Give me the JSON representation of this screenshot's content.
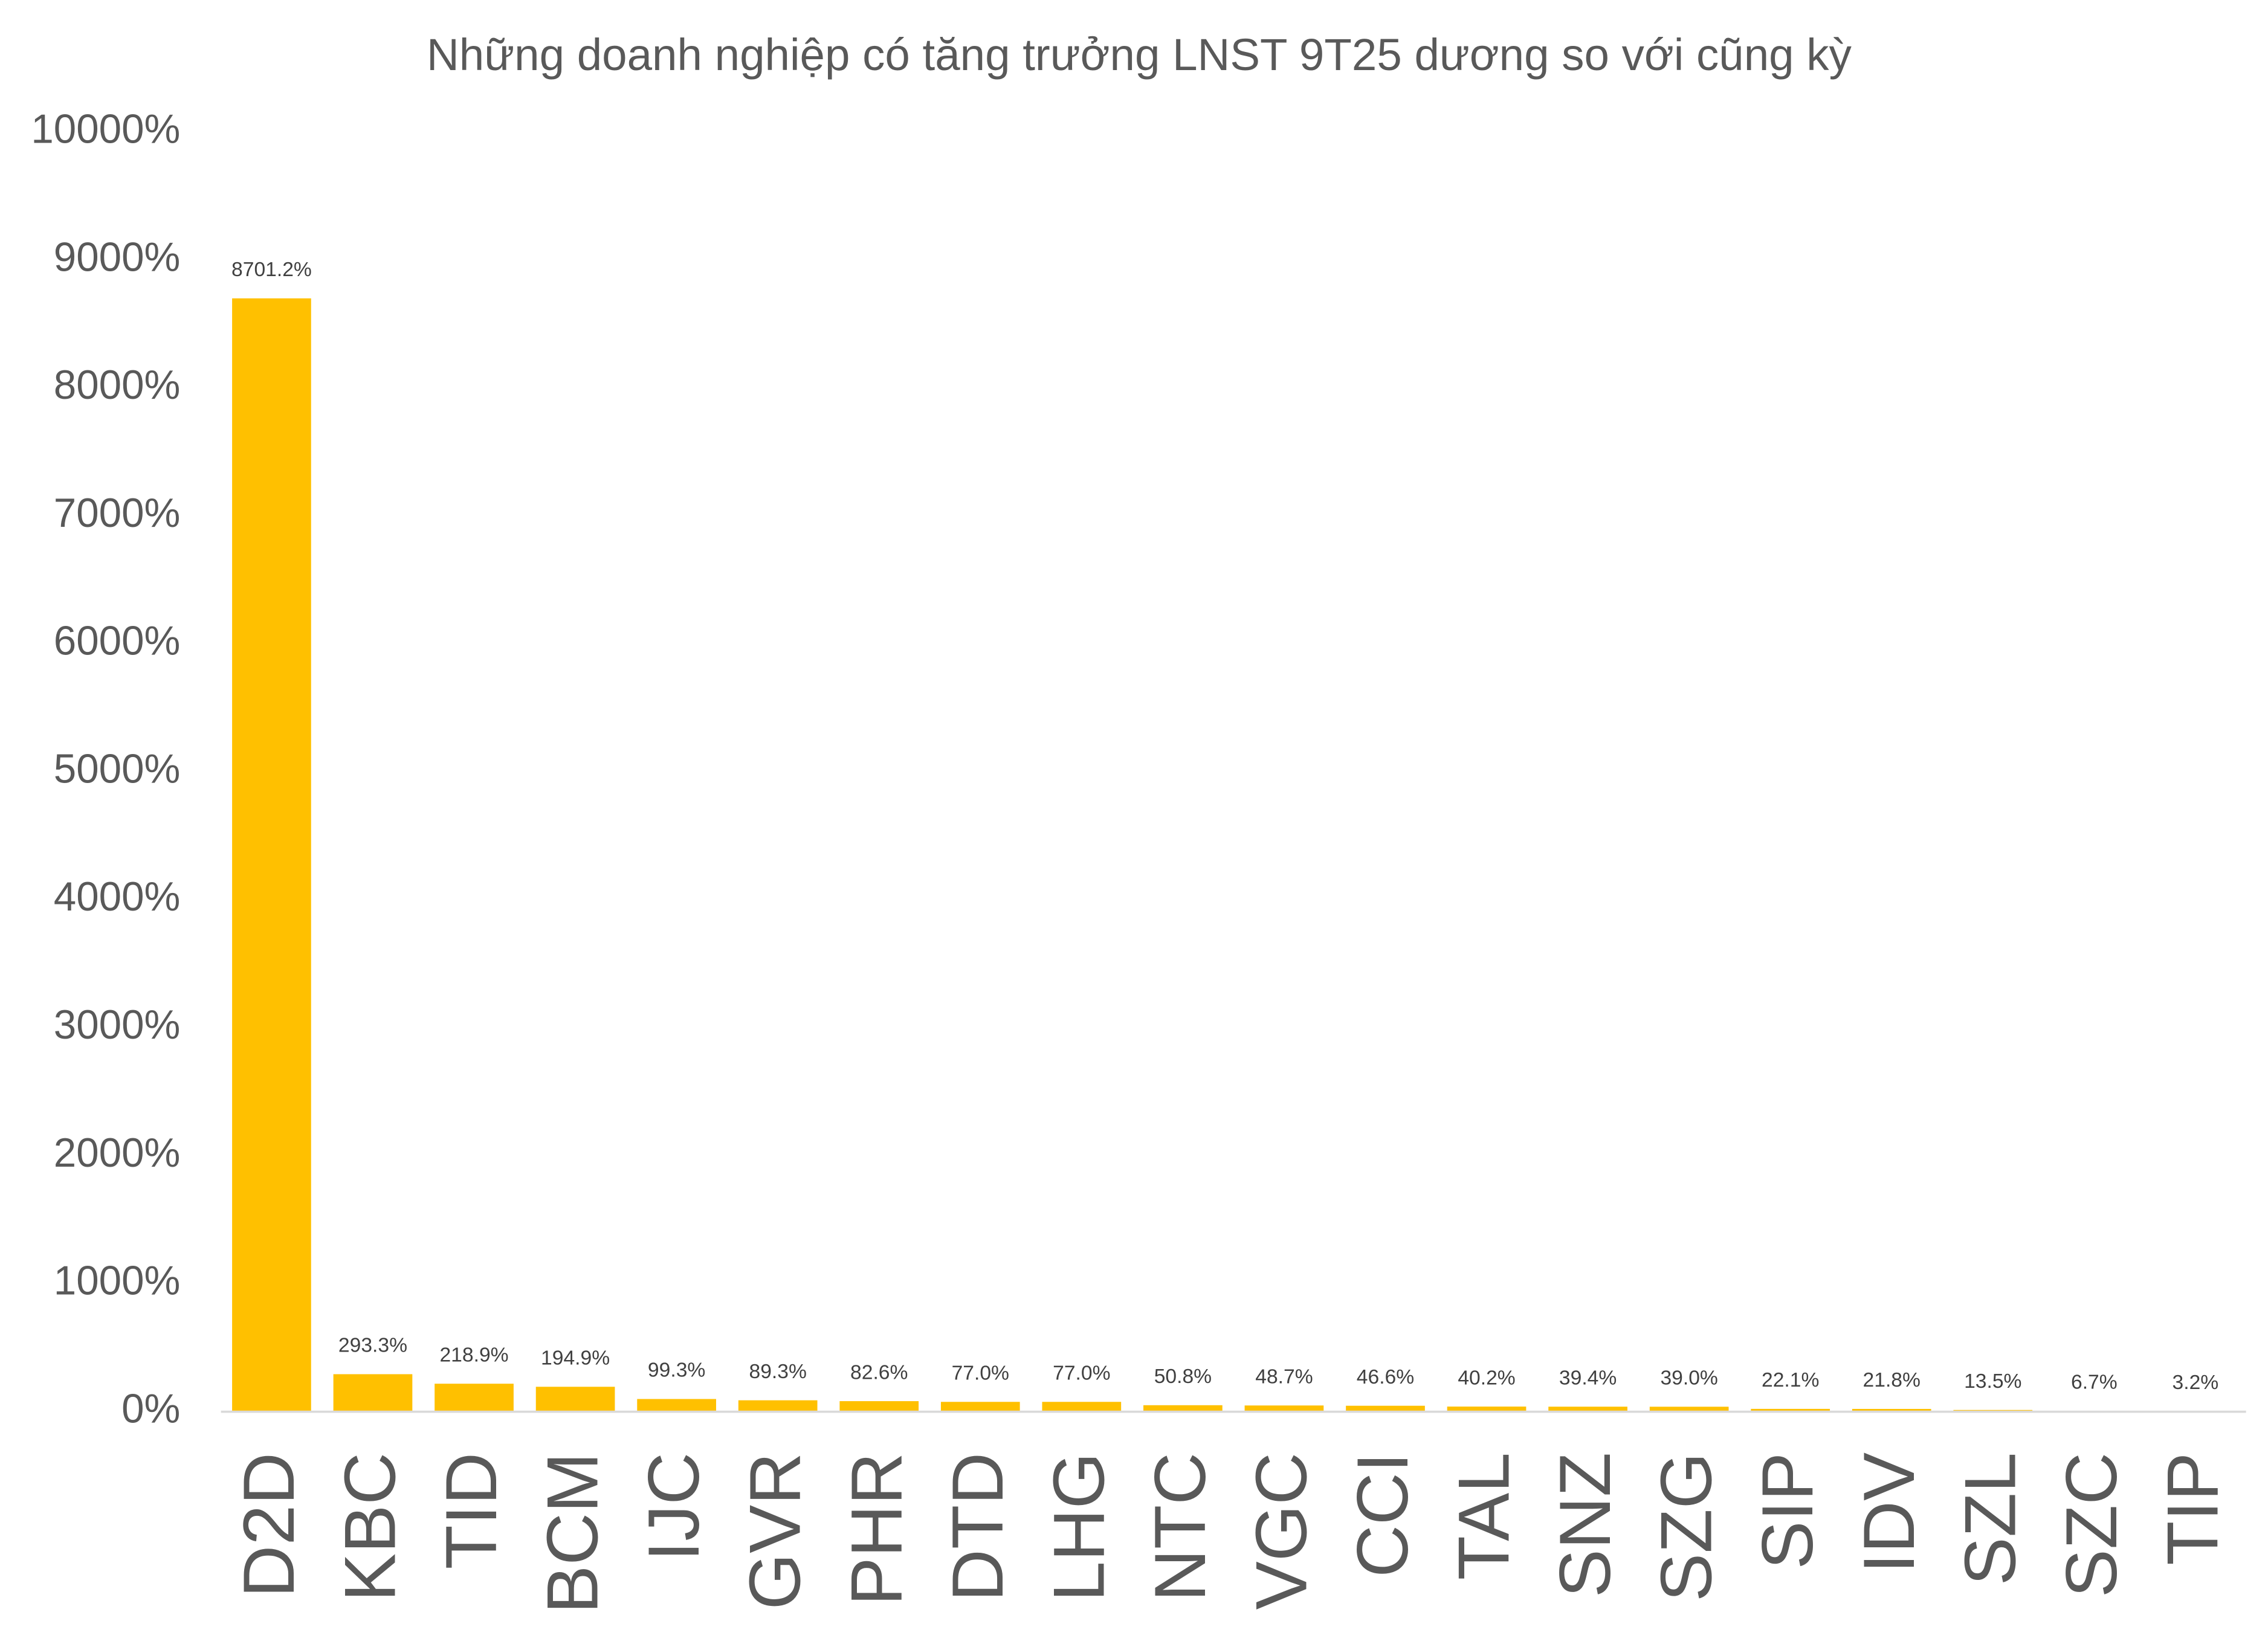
{
  "chart_data": {
    "type": "bar",
    "title": "Những doanh nghiệp có tăng trưởng LNST 9T25 dương so với cũng kỳ",
    "categories": [
      "D2D",
      "KBC",
      "TID",
      "BCM",
      "IJC",
      "GVR",
      "PHR",
      "DTD",
      "LHG",
      "NTC",
      "VGC",
      "CCI",
      "TAL",
      "SNZ",
      "SZG",
      "SIP",
      "IDV",
      "SZL",
      "SZC",
      "TIP"
    ],
    "values": [
      8701.2,
      293.3,
      218.9,
      194.9,
      99.3,
      89.3,
      82.6,
      77.0,
      77.0,
      50.8,
      48.7,
      46.6,
      40.2,
      39.4,
      39.0,
      22.1,
      21.8,
      13.5,
      6.7,
      3.2
    ],
    "value_labels": [
      "8701.2%",
      "293.3%",
      "218.9%",
      "194.9%",
      "99.3%",
      "89.3%",
      "82.6%",
      "77.0%",
      "77.0%",
      "50.8%",
      "48.7%",
      "46.6%",
      "40.2%",
      "39.4%",
      "39.0%",
      "22.1%",
      "21.8%",
      "13.5%",
      "6.7%",
      "3.2%"
    ],
    "color": "#FFC000",
    "ylim": [
      0,
      10000
    ],
    "yticks": [
      {
        "value": 0,
        "label": "0%"
      },
      {
        "value": 1000,
        "label": "1000%"
      },
      {
        "value": 2000,
        "label": "2000%"
      },
      {
        "value": 3000,
        "label": "3000%"
      },
      {
        "value": 4000,
        "label": "4000%"
      },
      {
        "value": 5000,
        "label": "5000%"
      },
      {
        "value": 6000,
        "label": "6000%"
      },
      {
        "value": 7000,
        "label": "7000%"
      },
      {
        "value": 8000,
        "label": "8000%"
      },
      {
        "value": 9000,
        "label": "9000%"
      },
      {
        "value": 10000,
        "label": "10000%"
      }
    ],
    "grid": false
  }
}
